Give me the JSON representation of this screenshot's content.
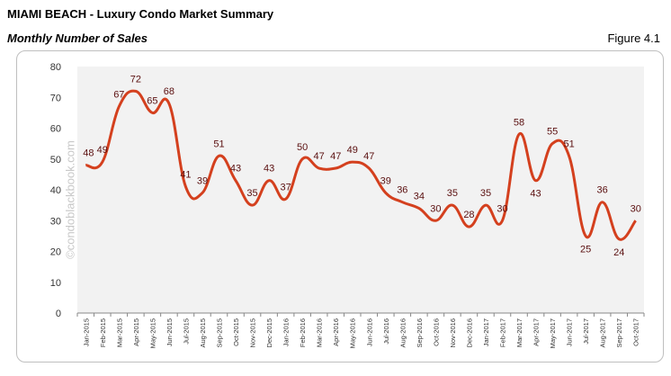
{
  "header": {
    "title": "MIAMI BEACH - Luxury Condo Market Summary",
    "subtitle": "Monthly Number of Sales",
    "figure": "Figure 4.1",
    "watermark": "©condoblackbook.com"
  },
  "chart_data": {
    "type": "line",
    "title": "Monthly Number of Sales",
    "xlabel": "",
    "ylabel": "",
    "ylim": [
      0,
      80
    ],
    "yticks": [
      0,
      10,
      20,
      30,
      40,
      50,
      60,
      70,
      80
    ],
    "grid": false,
    "line_color": "#d4401e",
    "categories": [
      "Jan-2015",
      "Feb-2015",
      "Mar-2015",
      "Apr-2015",
      "May-2015",
      "Jun-2015",
      "Jul-2015",
      "Aug-2015",
      "Sep-2015",
      "Oct-2015",
      "Nov-2015",
      "Dec-2015",
      "Jan-2016",
      "Feb-2016",
      "Mar-2016",
      "Apr-2016",
      "May-2016",
      "Jun-2016",
      "Jul-2016",
      "Aug-2016",
      "Sep-2016",
      "Oct-2016",
      "Nov-2016",
      "Dec-2016",
      "Jan-2017",
      "Feb-2017",
      "Mar-2017",
      "Apr-2017",
      "May-2017",
      "Jun-2017",
      "Jul-2017",
      "Aug-2017",
      "Sep-2017",
      "Oct-2017"
    ],
    "values": [
      48,
      49,
      67,
      72,
      65,
      68,
      41,
      39,
      51,
      43,
      35,
      43,
      37,
      50,
      47,
      47,
      49,
      47,
      39,
      36,
      34,
      30,
      35,
      28,
      35,
      30,
      58,
      43,
      55,
      51,
      25,
      36,
      24,
      30
    ]
  }
}
